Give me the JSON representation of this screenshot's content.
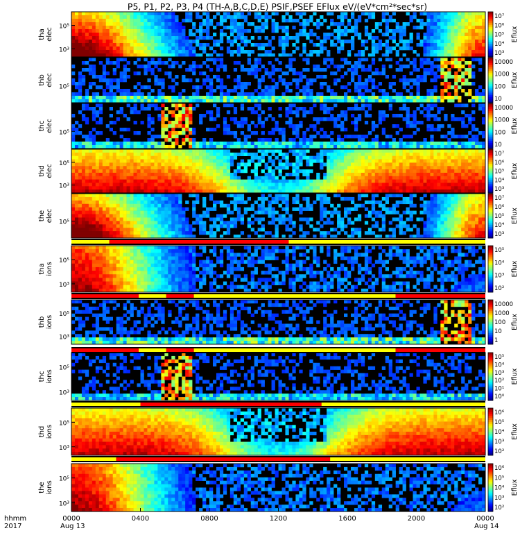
{
  "chart_data": {
    "type": "heatmap",
    "title": "P5, P1, P2, P3, P4 (TH-A,B,C,D,E) PSIF,PSEF EFlux eV/(eV*cm²*sec*sr)",
    "xlabel_row1": "hhmm",
    "xlabel_row2": "2017",
    "x_ticks": [
      "0000",
      "0400",
      "0800",
      "1200",
      "1600",
      "2000",
      "0000"
    ],
    "x_dates": [
      "Aug 13",
      "Aug 14"
    ],
    "x_range_hours": [
      0,
      24
    ],
    "colorbar_label": "Eflux",
    "panels": [
      {
        "probe": "tha",
        "species": "elec",
        "yticks": [
          "10⁵",
          "10³"
        ],
        "zlim": [
          "10³",
          "10⁷"
        ],
        "cbar_ticks": [
          "10⁷",
          "10⁶",
          "10⁵",
          "10⁴",
          "10³"
        ],
        "profile": "sheath-edges"
      },
      {
        "probe": "thb",
        "species": "elec",
        "yticks": [
          "10⁵"
        ],
        "zlim": [
          "10",
          "10000"
        ],
        "cbar_ticks": [
          "10000",
          "1000",
          "100",
          "10"
        ],
        "profile": "noise-late"
      },
      {
        "probe": "thc",
        "species": "elec",
        "yticks": [
          "10⁵"
        ],
        "zlim": [
          "10",
          "10000"
        ],
        "cbar_ticks": [
          "10000",
          "1000",
          "100",
          "10"
        ],
        "profile": "noise-early"
      },
      {
        "probe": "thd",
        "species": "elec",
        "yticks": [
          "10⁵",
          "10³"
        ],
        "zlim": [
          "10³",
          "10⁷"
        ],
        "cbar_ticks": [
          "10⁷",
          "10⁶",
          "10⁵",
          "10⁴",
          "10³"
        ],
        "profile": "wide-hot"
      },
      {
        "probe": "the",
        "species": "elec",
        "yticks": [
          "10⁵"
        ],
        "zlim": [
          "10³",
          "10⁷"
        ],
        "cbar_ticks": [
          "10⁷",
          "10⁶",
          "10⁵",
          "10⁴",
          "10³"
        ],
        "profile": "sheath-edges"
      },
      {
        "probe": "tha",
        "species": "ions",
        "yticks": [
          "10⁵",
          "10³"
        ],
        "zlim": [
          "10²",
          "10⁵"
        ],
        "cbar_ticks": [
          "10⁵",
          "10⁴",
          "10³",
          "10²"
        ],
        "profile": "ion-early"
      },
      {
        "probe": "thb",
        "species": "ions",
        "yticks": [
          "10⁵",
          "10³"
        ],
        "zlim": [
          "1",
          "10000"
        ],
        "cbar_ticks": [
          "10000",
          "1000",
          "100",
          "10",
          "1"
        ],
        "profile": "noise-late"
      },
      {
        "probe": "thc",
        "species": "ions",
        "yticks": [
          "10⁵",
          "10³"
        ],
        "zlim": [
          "10⁰",
          "10⁵"
        ],
        "cbar_ticks": [
          "10⁵",
          "10⁴",
          "10³",
          "10²",
          "10¹",
          "10⁰"
        ],
        "profile": "noise-early"
      },
      {
        "probe": "thd",
        "species": "ions",
        "yticks": [
          "10⁵",
          "10³"
        ],
        "zlim": [
          "10²",
          "10⁶"
        ],
        "cbar_ticks": [
          "10⁶",
          "10⁵",
          "10⁴",
          "10³",
          "10²"
        ],
        "profile": "wide-hot"
      },
      {
        "probe": "the",
        "species": "ions",
        "yticks": [
          "10⁵",
          "10³"
        ],
        "zlim": [
          "10²",
          "10⁶"
        ],
        "cbar_ticks": [
          "10⁶",
          "10⁵",
          "10⁴",
          "10³",
          "10²"
        ],
        "profile": "ion-early"
      }
    ],
    "region_bars": [
      {
        "after_panel": 4,
        "segments": [
          {
            "start_hr": 0,
            "end_hr": 2.2,
            "color": "#ffff00"
          },
          {
            "start_hr": 2.2,
            "end_hr": 12.6,
            "color": "#ff0000"
          },
          {
            "start_hr": 12.6,
            "end_hr": 24,
            "color": "#ffff00"
          }
        ]
      },
      {
        "after_panel": 5,
        "segments": [
          {
            "start_hr": 0,
            "end_hr": 3.9,
            "color": "#ff0000"
          },
          {
            "start_hr": 3.9,
            "end_hr": 5.5,
            "color": "#ffff00"
          },
          {
            "start_hr": 5.5,
            "end_hr": 7.1,
            "color": "#ff0000"
          },
          {
            "start_hr": 7.1,
            "end_hr": 18.8,
            "color": "#ffff00"
          },
          {
            "start_hr": 18.8,
            "end_hr": 24,
            "color": "#ff0000"
          }
        ]
      },
      {
        "after_panel": 6,
        "segments": [
          {
            "start_hr": 0,
            "end_hr": 3.9,
            "color": "#ff0000"
          },
          {
            "start_hr": 3.9,
            "end_hr": 5.5,
            "color": "#ffff00"
          },
          {
            "start_hr": 5.5,
            "end_hr": 7.1,
            "color": "#ff0000"
          },
          {
            "start_hr": 7.1,
            "end_hr": 18.8,
            "color": "#ffff00"
          },
          {
            "start_hr": 18.8,
            "end_hr": 24,
            "color": "#ff0000"
          }
        ]
      },
      {
        "after_panel": 7,
        "segments": [
          {
            "start_hr": 0,
            "end_hr": 4.0,
            "color": "#ffff00"
          },
          {
            "start_hr": 4.0,
            "end_hr": 14.5,
            "color": "#ff0000"
          },
          {
            "start_hr": 14.5,
            "end_hr": 24,
            "color": "#ffff00"
          }
        ]
      },
      {
        "after_panel": 8,
        "segments": [
          {
            "start_hr": 0,
            "end_hr": 2.6,
            "color": "#ffff00"
          },
          {
            "start_hr": 2.6,
            "end_hr": 15.0,
            "color": "#ff0000"
          },
          {
            "start_hr": 15.0,
            "end_hr": 24,
            "color": "#ffff00"
          }
        ]
      }
    ]
  }
}
